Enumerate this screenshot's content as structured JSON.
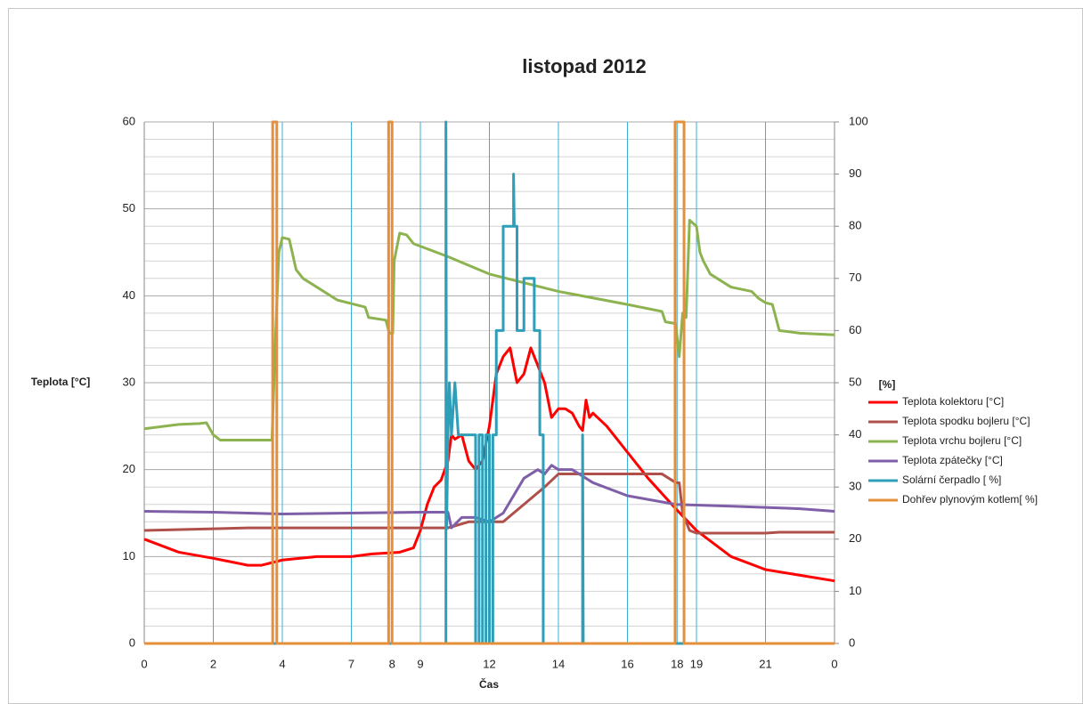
{
  "chart_data": {
    "type": "line",
    "title": "listopad 2012",
    "xlabel": "Čas",
    "ylabel": "Teplota [°C]",
    "y2label": "[%]",
    "xlim": [
      0,
      100
    ],
    "xticks": [
      {
        "value": 0,
        "label": "0"
      },
      {
        "value": 10,
        "label": "2"
      },
      {
        "value": 20,
        "label": "4"
      },
      {
        "value": 30,
        "label": "7"
      },
      {
        "value": 35.9,
        "label": "8"
      },
      {
        "value": 40,
        "label": "9"
      },
      {
        "value": 50,
        "label": "12"
      },
      {
        "value": 60,
        "label": "14"
      },
      {
        "value": 70,
        "label": "16"
      },
      {
        "value": 77.2,
        "label": "18"
      },
      {
        "value": 80,
        "label": "19"
      },
      {
        "value": 90,
        "label": "21"
      },
      {
        "value": 100,
        "label": "0"
      }
    ],
    "ylim": [
      0,
      60
    ],
    "yticks": [
      0,
      10,
      20,
      30,
      40,
      50,
      60
    ],
    "yminorticks": [
      2,
      4,
      6,
      8,
      12,
      14,
      16,
      18,
      22,
      24,
      26,
      28,
      32,
      34,
      36,
      38,
      42,
      44,
      46,
      48,
      52,
      54,
      56,
      58
    ],
    "y2lim": [
      0,
      100
    ],
    "y2ticks": [
      0,
      10,
      20,
      30,
      40,
      50,
      60,
      70,
      80,
      90,
      100
    ],
    "grid": true,
    "legend": "right",
    "series": [
      {
        "name": "Teplota kolektoru [°C]",
        "color": "#ff0000",
        "x": [
          0,
          5,
          10,
          15,
          17,
          20,
          25,
          30,
          33,
          37,
          39,
          40,
          41,
          42,
          43,
          44,
          44.5,
          45,
          46,
          47,
          48,
          49,
          50,
          51,
          52,
          53,
          54,
          55,
          56,
          57,
          58,
          59,
          60,
          61,
          62,
          63,
          63.5,
          64,
          64.5,
          65,
          67,
          70,
          73,
          77,
          80,
          85,
          90,
          100
        ],
        "values": [
          12,
          10.5,
          9.8,
          9,
          9,
          9.6,
          10,
          10,
          10.3,
          10.5,
          11,
          13,
          16,
          18,
          18.8,
          21,
          24,
          23.5,
          24,
          21,
          20,
          21,
          25,
          31,
          33,
          34,
          30,
          31,
          34,
          32,
          30,
          26,
          27,
          27,
          26.5,
          25,
          24.5,
          28,
          26,
          26.5,
          25,
          22,
          19,
          15.5,
          13,
          10,
          8.5,
          7.2
        ]
      },
      {
        "name": "Teplota spodku bojleru [°C]",
        "color": "#b0504a",
        "x": [
          0,
          10,
          15,
          40,
          44,
          47,
          52,
          55,
          58,
          60,
          65,
          75,
          76,
          77,
          77.5,
          78,
          79,
          80,
          90,
          92,
          100
        ],
        "values": [
          13,
          13.2,
          13.3,
          13.3,
          13.3,
          14,
          14,
          16,
          18,
          19.5,
          19.5,
          19.5,
          19,
          18.5,
          18.5,
          15,
          13,
          12.7,
          12.7,
          12.8,
          12.8
        ]
      },
      {
        "name": "Teplota vrchu bojleru [°C]",
        "color": "#8db350",
        "x": [
          0,
          5,
          8,
          9,
          10,
          11,
          15,
          18.5,
          19,
          19.5,
          20,
          21,
          22,
          23,
          28,
          32,
          32.5,
          35,
          35.5,
          36,
          36.2,
          37,
          38,
          39,
          44,
          50,
          60,
          70,
          75,
          75.5,
          77,
          77.5,
          78,
          78.5,
          79,
          80,
          80.5,
          81,
          82,
          85,
          88,
          89,
          90,
          91,
          92,
          95,
          100
        ],
        "values": [
          24.7,
          25.2,
          25.3,
          25.4,
          24,
          23.4,
          23.4,
          23.4,
          35,
          45,
          46.7,
          46.5,
          43,
          42,
          39.5,
          38.7,
          37.5,
          37.2,
          35.7,
          35.7,
          44,
          47.2,
          47,
          46,
          44.5,
          42.5,
          40.5,
          39,
          38.2,
          37,
          36.8,
          33,
          38,
          37.5,
          48.7,
          48,
          45,
          44,
          42.5,
          41,
          40.5,
          39.7,
          39.2,
          39,
          36,
          35.7,
          35.5
        ]
      },
      {
        "name": "Teplota zpátečky [°C]",
        "color": "#7f5fa8",
        "x": [
          0,
          10,
          20,
          40,
          44,
          44.5,
          46,
          48,
          50,
          52,
          55,
          57,
          58,
          59,
          60,
          62,
          65,
          70,
          77,
          85,
          95,
          100
        ],
        "values": [
          15.2,
          15.1,
          14.9,
          15.1,
          15.1,
          13.3,
          14.5,
          14.5,
          14,
          15,
          19,
          20,
          19.5,
          20.5,
          20,
          20,
          18.5,
          17,
          16,
          15.8,
          15.5,
          15.2
        ]
      },
      {
        "name": "Solární čerpadlo [ %]",
        "color": "#2f9eb8",
        "axis": "y2",
        "x": [
          0,
          43.7,
          43.7,
          43.8,
          44,
          44.2,
          44.5,
          45,
          45.5,
          48,
          48,
          48.5,
          48.5,
          49,
          49,
          49.5,
          49.5,
          50,
          50,
          50.5,
          50.5,
          51,
          51,
          52,
          52,
          53.5,
          53.5,
          53.6,
          54,
          54,
          55,
          55,
          56.5,
          56.5,
          57.3,
          57.3,
          57.8,
          57.8,
          63.5,
          63.5,
          63.6,
          100
        ],
        "values": [
          0,
          0,
          100,
          22,
          40,
          50,
          40,
          50,
          40,
          40,
          0,
          0,
          40,
          40,
          0,
          0,
          40,
          40,
          0,
          0,
          40,
          40,
          60,
          60,
          80,
          80,
          90,
          80,
          80,
          60,
          60,
          70,
          70,
          60,
          60,
          40,
          40,
          0,
          0,
          40,
          0,
          0
        ]
      },
      {
        "name": "Dohřev plynovým kotlem[ %]",
        "color": "#e58f3a",
        "axis": "y2",
        "x": [
          0,
          18.6,
          18.6,
          19.2,
          19.2,
          35.4,
          35.4,
          35.9,
          35.9,
          76.9,
          76.9,
          78.2,
          78.2,
          100
        ],
        "values": [
          0,
          0,
          100,
          100,
          0,
          0,
          100,
          100,
          0,
          0,
          100,
          100,
          0,
          0
        ]
      }
    ]
  }
}
